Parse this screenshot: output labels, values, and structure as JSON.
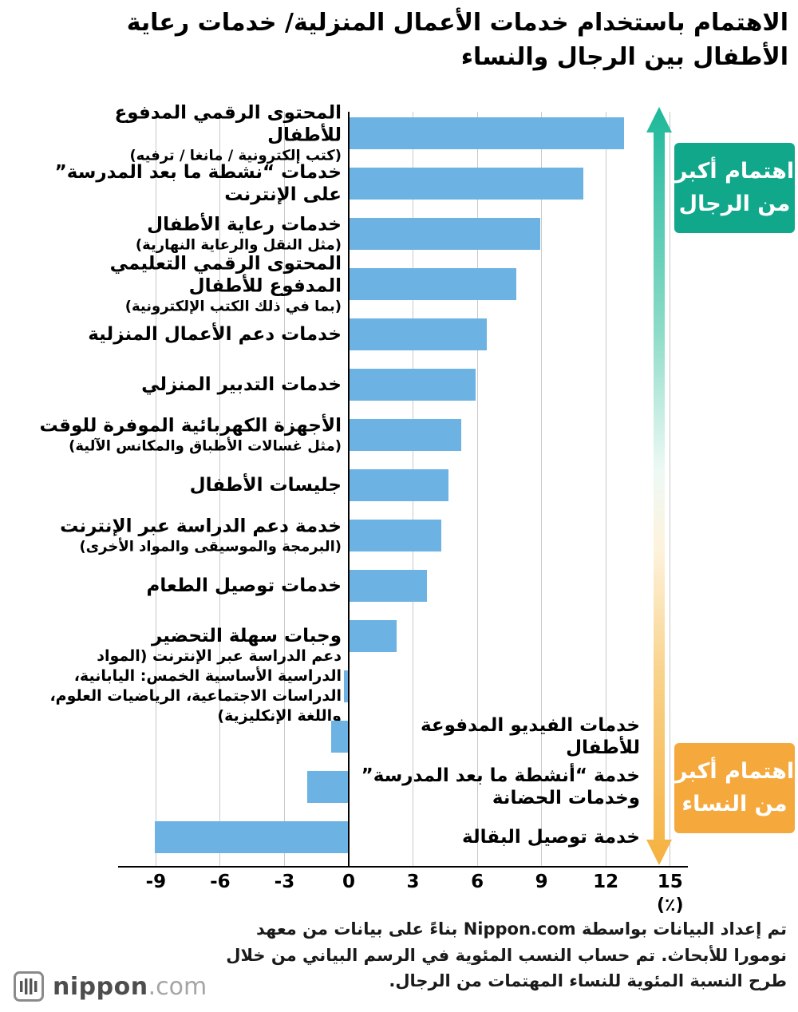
{
  "title": "الاهتمام باستخدام خدمات الأعمال المنزلية/ خدمات رعاية الأطفال بين الرجال والنساء",
  "colors": {
    "bar": "#6CB2E2",
    "men_accent": "#10A78B",
    "women_accent": "#F5A93C",
    "arrow_top": "#1DB89A",
    "arrow_bottom": "#F6B13F",
    "grid": "#c9c9c9"
  },
  "annotations": {
    "men_box": {
      "line1": "اهتمام أكبر",
      "line2": "من الرجال"
    },
    "women_box": {
      "line1": "اهتمام أكبر",
      "line2": "من النساء"
    }
  },
  "chart_data": {
    "type": "bar",
    "orientation": "horizontal",
    "title": "الاهتمام باستخدام خدمات الأعمال المنزلية/ خدمات رعاية الأطفال بين الرجال والنساء",
    "unit": "%",
    "xlabel": "(٪)",
    "xlim": [
      -9,
      15
    ],
    "xticks": [
      -9,
      -6,
      -3,
      0,
      3,
      6,
      9,
      12,
      15
    ],
    "grid": true,
    "categories": [
      {
        "label": "المحتوى الرقمي المدفوع للأطفال",
        "sub": "(كتب إلكترونية / مانغا / ترفيه)",
        "value": 12.8,
        "side": "left",
        "small": false
      },
      {
        "label": "خدمات “نشطة ما بعد المدرسة” على الإنترنت",
        "sub": "",
        "value": 10.9,
        "side": "left",
        "small": false
      },
      {
        "label": "خدمات رعاية الأطفال",
        "sub": "(مثل النقل والرعاية النهارية)",
        "value": 8.9,
        "side": "left",
        "small": false
      },
      {
        "label": "المحتوى الرقمي التعليمي المدفوع للأطفال",
        "sub": "(بما في ذلك الكتب الإلكترونية)",
        "value": 7.8,
        "side": "left",
        "small": false
      },
      {
        "label": "خدمات دعم الأعمال المنزلية",
        "sub": "",
        "value": 6.4,
        "side": "left",
        "small": false
      },
      {
        "label": "خدمات التدبير المنزلي",
        "sub": "",
        "value": 5.9,
        "side": "left",
        "small": false
      },
      {
        "label": "الأجهزة الكهربائية الموفرة للوقت",
        "sub": "(مثل غسالات الأطباق والمكانس الآلية)",
        "value": 5.2,
        "side": "left",
        "small": false
      },
      {
        "label": "جليسات الأطفال",
        "sub": "",
        "value": 4.6,
        "side": "left",
        "small": false
      },
      {
        "label": "خدمة دعم الدراسة عبر الإنترنت",
        "sub": "(البرمجة والموسيقى والمواد الأخرى)",
        "value": 4.3,
        "side": "left",
        "small": false
      },
      {
        "label": "خدمات توصيل الطعام",
        "sub": "",
        "value": 3.6,
        "side": "left",
        "small": false
      },
      {
        "label": "وجبات سهلة التحضير",
        "sub": "",
        "value": 2.2,
        "side": "left",
        "small": false
      },
      {
        "label": "دعم الدراسة عبر الإنترنت (المواد الدراسية الأساسية الخمس: اليابانية، الدراسات الاجتماعية، الرياضيات العلوم، واللغة الإنكليزية)",
        "sub": "",
        "value": -0.2,
        "side": "left",
        "small": true
      },
      {
        "label": "خدمات الفيديو المدفوعة للأطفال",
        "sub": "",
        "value": -0.8,
        "side": "right",
        "small": false
      },
      {
        "label": "خدمة “أنشطة ما بعد المدرسة” وخدمات الحضانة",
        "sub": "",
        "value": -1.9,
        "side": "right",
        "small": false
      },
      {
        "label": "خدمة توصيل البقالة",
        "sub": "",
        "value": -9.0,
        "side": "right",
        "small": false
      }
    ]
  },
  "footer": {
    "text": "تم إعداد البيانات بواسطة Nippon.com بناءً على بيانات من معهد نومورا للأبحاث. تم حساب النسب المئوية في الرسم البياني من خلال طرح النسبة المئوية للنساء المهتمات من الرجال."
  },
  "logo": {
    "name": "nippon",
    "tld": ".com"
  }
}
